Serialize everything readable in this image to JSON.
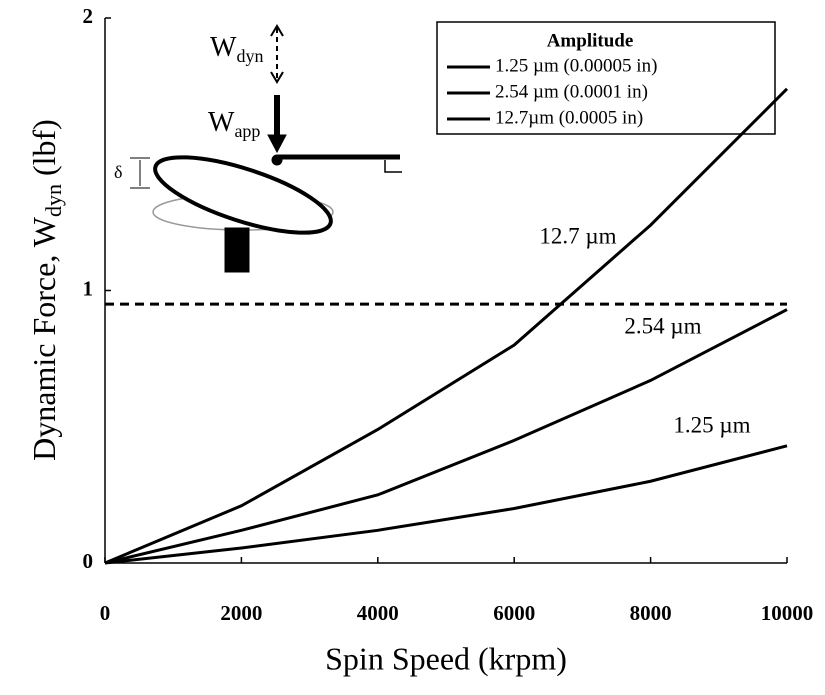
{
  "chart_data": {
    "type": "line",
    "x_label": "Spin Speed (krpm)",
    "y_label": {
      "text": "Dynamic Force, W",
      "sub": "dyn",
      "unit": "(lbf)"
    },
    "x": [
      0,
      2000,
      4000,
      6000,
      8000,
      10000
    ],
    "series": [
      {
        "name": "1.25 µm (0.00005 in)",
        "label": "1.25 µm",
        "color": "#000000",
        "values": [
          0,
          0.055,
          0.12,
          0.2,
          0.3,
          0.43
        ]
      },
      {
        "name": "2.54 µm (0.0001 in)",
        "label": "2.54 µm",
        "color": "#000000",
        "values": [
          0,
          0.12,
          0.25,
          0.45,
          0.67,
          0.93
        ]
      },
      {
        "name": "12.7µm (0.0005 in)",
        "label": "12.7 µm",
        "color": "#000000",
        "values": [
          0,
          0.21,
          0.49,
          0.8,
          1.24,
          1.74
        ]
      }
    ],
    "threshold": 0.95,
    "xlim": [
      0,
      10000
    ],
    "ylim": [
      0,
      2
    ],
    "xticks": [
      0,
      2000,
      4000,
      6000,
      8000,
      10000
    ],
    "yticks": [
      0,
      1,
      2
    ],
    "legend_title": "Amplitude",
    "legend_position": "upper right",
    "inset": {
      "w_dyn": {
        "text": "W",
        "sub": "dyn"
      },
      "w_app": {
        "text": "W",
        "sub": "app"
      },
      "delta": "δ"
    }
  }
}
